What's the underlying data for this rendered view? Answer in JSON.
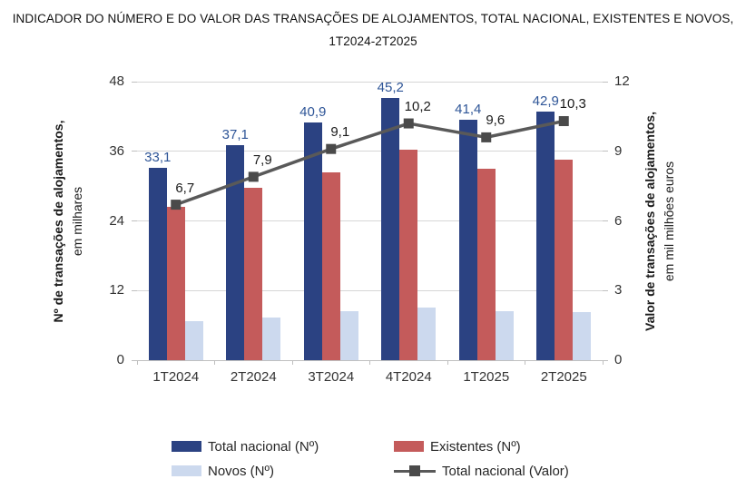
{
  "title": {
    "line1": "INDICADOR DO NÚMERO E DO VALOR DAS TRANSAÇÕES DE ALOJAMENTOS, TOTAL NACIONAL, EXISTENTES E NOVOS,",
    "line2": "1T2024-2T2025"
  },
  "chart_data": {
    "type": "bar",
    "subtype": "grouped-bars-with-line",
    "categories": [
      "1T2024",
      "2T2024",
      "3T2024",
      "4T2024",
      "1T2025",
      "2T2025"
    ],
    "series": [
      {
        "name": "Total nacional (Nº)",
        "kind": "bar",
        "axis": "left",
        "color": "#2B4282",
        "values": [
          33.1,
          37.1,
          40.9,
          45.2,
          41.4,
          42.9
        ],
        "labels": [
          "33,1",
          "37,1",
          "40,9",
          "45,2",
          "41,4",
          "42,9"
        ],
        "label_color": "#2E5597"
      },
      {
        "name": "Existentes (Nº)",
        "kind": "bar",
        "axis": "left",
        "color": "#C45B5B",
        "values": [
          26.4,
          29.7,
          32.4,
          36.2,
          33.0,
          34.6
        ]
      },
      {
        "name": "Novos (Nº)",
        "kind": "bar",
        "axis": "left",
        "color": "#CCD9EE",
        "values": [
          6.7,
          7.4,
          8.5,
          9.0,
          8.4,
          8.3
        ]
      },
      {
        "name": "Total nacional (Valor)",
        "kind": "line",
        "axis": "right",
        "color": "#595959",
        "marker_color": "#4A4A4A",
        "values": [
          6.7,
          7.9,
          9.1,
          10.2,
          9.6,
          10.3
        ],
        "labels": [
          "6,7",
          "7,9",
          "9,1",
          "10,2",
          "9,6",
          "10,3"
        ]
      }
    ],
    "left_axis": {
      "title_line1": "Nº  de transações de alojamentos,",
      "title_line2": "em milhares",
      "min": 0,
      "max": 48,
      "ticks": [
        0,
        12,
        24,
        36,
        48
      ]
    },
    "right_axis": {
      "title_line1": "Valor de transações de alojamentos,",
      "title_line2": "em mil milhões euros",
      "min": 0,
      "max": 12,
      "ticks": [
        0,
        3,
        6,
        9,
        12
      ]
    },
    "grid": true,
    "legend_position": "bottom"
  },
  "style": {
    "gridline_color": "#D6D6D6",
    "axisline_color": "#BFBFBF",
    "tick_text_color": "#333333"
  }
}
